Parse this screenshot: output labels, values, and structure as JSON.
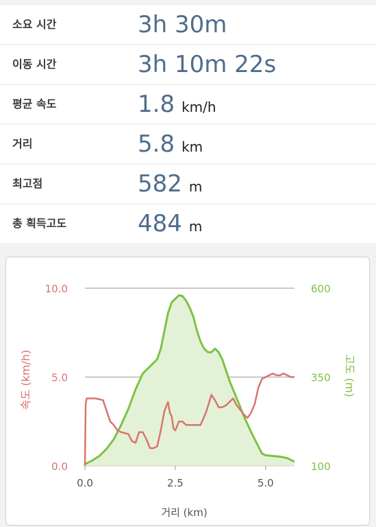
{
  "stats": [
    {
      "label": "소요 시간",
      "value": "3h 30m",
      "unit": ""
    },
    {
      "label": "이동 시간",
      "value": "3h 10m 22s",
      "unit": ""
    },
    {
      "label": "평균 속도",
      "value": "1.8",
      "unit": "km/h"
    },
    {
      "label": "거리",
      "value": "5.8",
      "unit": "km"
    },
    {
      "label": "최고점",
      "value": "582",
      "unit": "m"
    },
    {
      "label": "총 획득고도",
      "value": "484",
      "unit": "m"
    }
  ],
  "colors": {
    "value_text": "#4f6d8c",
    "speed": "#d9736f",
    "elevation": "#7cc243",
    "elevation_fill": "#e3f2d6"
  },
  "chart_data": {
    "type": "line",
    "xlabel": "거리 (km)",
    "y_left_label": "속도 (km/h)",
    "y_right_label": "고도 (m)",
    "xlim": [
      0,
      5.8
    ],
    "xticks": [
      "0.0",
      "2.5",
      "5.0"
    ],
    "y_left_lim": [
      0,
      10
    ],
    "y_left_ticks": [
      "0.0",
      "5.0",
      "10.0"
    ],
    "y_right_lim": [
      100,
      600
    ],
    "y_right_ticks": [
      "100",
      "350",
      "600"
    ],
    "grid": "horizontal at 5.0 and 10.0",
    "series": [
      {
        "axis": "right",
        "fill": true,
        "x": [
          0,
          0.2,
          0.4,
          0.6,
          0.8,
          1.0,
          1.2,
          1.4,
          1.6,
          1.8,
          2.0,
          2.1,
          2.2,
          2.3,
          2.4,
          2.5,
          2.6,
          2.7,
          2.8,
          2.9,
          3.0,
          3.1,
          3.2,
          3.3,
          3.4,
          3.5,
          3.6,
          3.7,
          3.8,
          3.9,
          4.0,
          4.2,
          4.4,
          4.6,
          4.8,
          4.9,
          5.0,
          5.2,
          5.4,
          5.6,
          5.8
        ],
        "values": [
          105,
          115,
          128,
          148,
          175,
          215,
          260,
          315,
          360,
          380,
          400,
          430,
          480,
          530,
          560,
          570,
          580,
          578,
          565,
          545,
          520,
          480,
          450,
          430,
          420,
          420,
          430,
          420,
          400,
          370,
          340,
          290,
          240,
          195,
          155,
          135,
          130,
          128,
          126,
          122,
          112
        ]
      },
      {
        "axis": "left",
        "fill": false,
        "x": [
          0,
          0.02,
          0.05,
          0.1,
          0.3,
          0.5,
          0.6,
          0.7,
          0.8,
          0.9,
          1.0,
          1.2,
          1.3,
          1.4,
          1.5,
          1.6,
          1.7,
          1.8,
          1.9,
          2.0,
          2.1,
          2.2,
          2.3,
          2.35,
          2.4,
          2.45,
          2.5,
          2.6,
          2.7,
          2.8,
          3.0,
          3.2,
          3.35,
          3.5,
          3.6,
          3.7,
          3.8,
          3.9,
          4.0,
          4.1,
          4.2,
          4.4,
          4.5,
          4.6,
          4.7,
          4.8,
          4.9,
          5.0,
          5.1,
          5.2,
          5.3,
          5.4,
          5.5,
          5.6,
          5.7,
          5.8
        ],
        "values": [
          0,
          3.5,
          3.8,
          3.8,
          3.8,
          3.7,
          3.1,
          2.5,
          2.3,
          2.0,
          1.9,
          1.8,
          1.4,
          1.3,
          1.9,
          1.9,
          1.5,
          1.0,
          1.0,
          1.1,
          2.0,
          3.1,
          3.6,
          3.0,
          2.8,
          2.1,
          2.0,
          2.5,
          2.5,
          2.3,
          2.3,
          2.3,
          3.0,
          4.0,
          3.7,
          3.3,
          3.3,
          3.4,
          3.6,
          3.8,
          3.4,
          2.9,
          2.7,
          3.0,
          3.5,
          4.4,
          4.9,
          5.0,
          5.1,
          5.2,
          5.1,
          5.1,
          5.2,
          5.1,
          5.0,
          5.0
        ]
      }
    ]
  }
}
